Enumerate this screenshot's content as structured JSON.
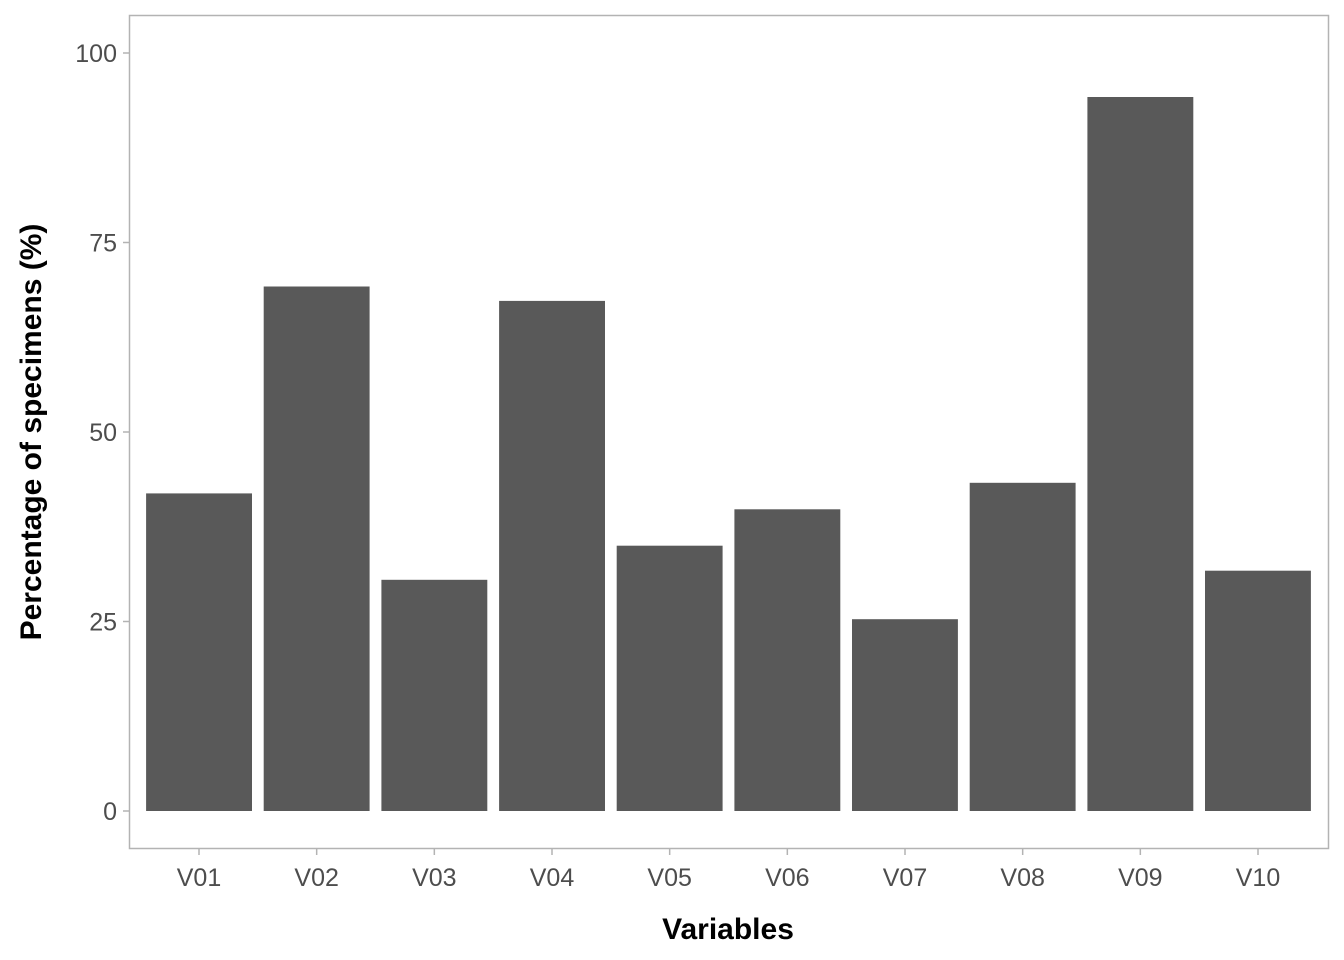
{
  "chart_data": {
    "type": "bar",
    "categories": [
      "V01",
      "V02",
      "V03",
      "V04",
      "V05",
      "V06",
      "V07",
      "V08",
      "V09",
      "V10"
    ],
    "values": [
      41.9,
      69.2,
      30.5,
      67.3,
      35.0,
      39.8,
      25.3,
      43.3,
      94.2,
      31.7
    ],
    "xlabel": "Variables",
    "ylabel": "Percentage of specimens (%)",
    "ylim": [
      0,
      100
    ],
    "yticks": [
      0,
      25,
      50,
      75,
      100
    ],
    "grid": false,
    "colors": {
      "bar": "#595959",
      "panel_border": "#b3b3b3",
      "tick_text": "#4d4d4d",
      "axis_title": "#000000"
    }
  }
}
